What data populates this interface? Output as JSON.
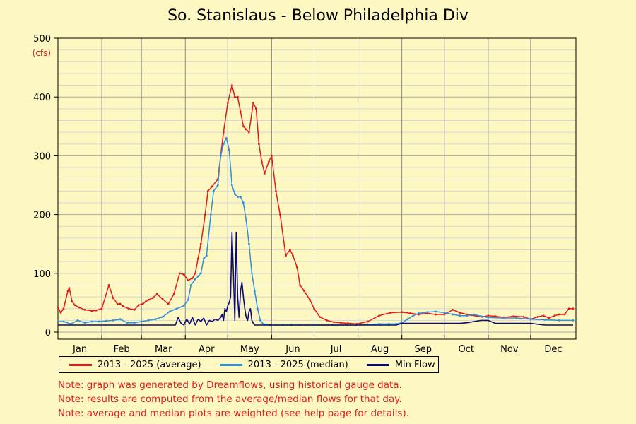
{
  "title": "So. Stanislaus - Below Philadelphia Div",
  "colors": {
    "background": "#fdf8c2",
    "average": "#e01b1b",
    "median": "#2e8fdc",
    "min_flow": "#0a0a7a",
    "notes": "#e01b1b"
  },
  "notes": [
    "Note: graph was generated by Dreamflows, using historical gauge data.",
    "Note: results are computed from the average/median flows for that day.",
    "Note: average and median plots are weighted (see help page for details)."
  ],
  "chart_data": {
    "type": "line",
    "title": "So. Stanislaus - Below Philadelphia Div",
    "xlabel": "",
    "ylabel": "(cfs)",
    "ylim": [
      0,
      500
    ],
    "yticks": [
      0,
      100,
      200,
      300,
      400,
      500
    ],
    "xlim": [
      1,
      366
    ],
    "grid": true,
    "legend_position": "bottom",
    "months": [
      "Jan",
      "Feb",
      "Mar",
      "Apr",
      "May",
      "Jun",
      "Jul",
      "Aug",
      "Sep",
      "Oct",
      "Nov",
      "Dec"
    ],
    "month_start_days": [
      1,
      32,
      60,
      91,
      121,
      152,
      182,
      213,
      244,
      274,
      305,
      335
    ],
    "series": [
      {
        "name": "2013 - 2025 (average)",
        "color": "#e01b1b",
        "x": [
          1,
          3,
          5,
          8,
          9,
          11,
          13,
          16,
          20,
          25,
          28,
          32,
          37,
          40,
          43,
          45,
          47,
          51,
          55,
          58,
          61,
          63,
          65,
          68,
          71,
          75,
          79,
          83,
          87,
          90,
          93,
          96,
          98,
          100,
          102,
          105,
          107,
          110,
          114,
          116,
          118,
          121,
          124,
          126,
          128,
          130,
          132,
          134,
          136,
          139,
          141,
          143,
          145,
          147,
          150,
          152,
          155,
          158,
          162,
          165,
          167,
          170,
          172,
          175,
          179,
          182,
          186,
          191,
          196,
          201,
          206,
          212,
          220,
          228,
          236,
          244,
          250,
          256,
          262,
          268,
          274,
          280,
          285,
          290,
          293,
          297,
          301,
          305,
          310,
          316,
          323,
          330,
          335,
          340,
          344,
          348,
          352,
          355,
          359,
          362,
          365
        ],
        "y": [
          42,
          33,
          40,
          70,
          75,
          52,
          46,
          42,
          38,
          36,
          37,
          40,
          80,
          58,
          48,
          48,
          44,
          40,
          38,
          46,
          48,
          52,
          55,
          58,
          65,
          56,
          48,
          65,
          100,
          98,
          88,
          92,
          100,
          125,
          150,
          200,
          240,
          248,
          260,
          300,
          340,
          390,
          420,
          400,
          400,
          375,
          350,
          345,
          340,
          390,
          380,
          320,
          290,
          270,
          290,
          300,
          240,
          200,
          130,
          140,
          130,
          110,
          80,
          70,
          55,
          40,
          26,
          20,
          17,
          16,
          15,
          14,
          18,
          28,
          33,
          34,
          32,
          30,
          32,
          30,
          30,
          38,
          33,
          30,
          29,
          27,
          26,
          28,
          27,
          25,
          27,
          26,
          22,
          26,
          28,
          24,
          28,
          30,
          30,
          40,
          40
        ]
      },
      {
        "name": "2013 - 2025 (median)",
        "color": "#2e8fdc",
        "x": [
          1,
          5,
          10,
          15,
          20,
          25,
          30,
          35,
          40,
          45,
          50,
          55,
          60,
          65,
          70,
          75,
          80,
          85,
          90,
          93,
          95,
          98,
          100,
          102,
          104,
          106,
          109,
          111,
          114,
          116,
          118,
          120,
          122,
          124,
          126,
          128,
          130,
          132,
          134,
          136,
          138,
          140,
          142,
          144,
          146,
          148,
          151,
          155,
          160,
          166,
          172,
          182,
          195,
          205,
          212,
          220,
          228,
          235,
          240,
          244,
          248,
          252,
          256,
          262,
          268,
          274,
          280,
          285,
          290,
          295,
          300,
          305,
          315,
          325,
          335,
          345,
          355,
          365
        ],
        "y": [
          18,
          18,
          14,
          20,
          16,
          18,
          18,
          19,
          20,
          22,
          16,
          16,
          18,
          20,
          22,
          26,
          35,
          40,
          45,
          55,
          80,
          90,
          95,
          100,
          125,
          130,
          200,
          240,
          250,
          300,
          320,
          330,
          310,
          250,
          235,
          230,
          230,
          220,
          190,
          150,
          100,
          70,
          40,
          20,
          14,
          13,
          12,
          12,
          12,
          12,
          12,
          12,
          12,
          12,
          12,
          13,
          14,
          14,
          14,
          16,
          22,
          28,
          32,
          34,
          35,
          33,
          30,
          28,
          28,
          30,
          27,
          25,
          24,
          24,
          22,
          21,
          20,
          20
        ]
      },
      {
        "name": "Min Flow",
        "color": "#0a0a7a",
        "x": [
          1,
          30,
          60,
          84,
          86,
          88,
          90,
          92,
          94,
          96,
          98,
          100,
          102,
          104,
          106,
          108,
          110,
          112,
          114,
          116,
          117,
          118,
          119,
          120,
          121,
          122,
          123,
          124,
          125,
          126,
          127,
          128,
          129,
          130,
          131,
          132,
          133,
          134,
          135,
          136,
          137,
          138,
          139,
          140,
          141,
          142,
          145,
          150,
          160,
          180,
          200,
          220,
          240,
          244,
          254,
          256,
          270,
          280,
          285,
          290,
          295,
          300,
          305,
          310,
          320,
          330,
          335,
          345,
          355,
          365
        ],
        "y": [
          12,
          12,
          12,
          12,
          25,
          15,
          12,
          22,
          14,
          25,
          12,
          22,
          18,
          24,
          12,
          20,
          18,
          22,
          20,
          25,
          30,
          20,
          40,
          35,
          45,
          50,
          60,
          170,
          100,
          20,
          170,
          60,
          25,
          70,
          85,
          60,
          40,
          25,
          20,
          35,
          40,
          20,
          15,
          12,
          12,
          12,
          12,
          12,
          12,
          12,
          12,
          12,
          12,
          15,
          15,
          15,
          15,
          15,
          15,
          16,
          18,
          20,
          20,
          15,
          15,
          15,
          15,
          12,
          12,
          12
        ]
      }
    ]
  },
  "legend": [
    {
      "label": "2013 - 2025 (average)",
      "color": "#e01b1b"
    },
    {
      "label": "2013 - 2025 (median)",
      "color": "#2e8fdc"
    },
    {
      "label": "Min Flow",
      "color": "#0a0a7a"
    }
  ]
}
